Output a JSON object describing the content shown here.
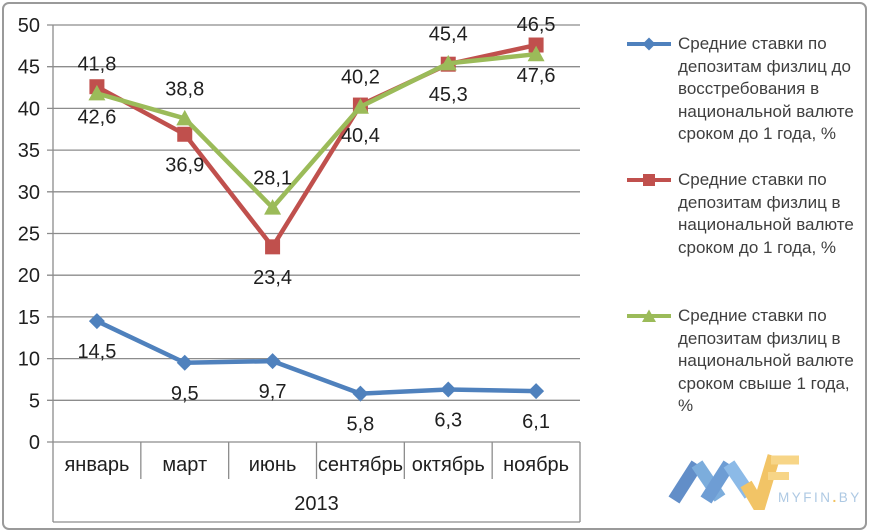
{
  "chart_data": {
    "type": "line",
    "title": "",
    "categories": [
      "январь",
      "март",
      "июнь",
      "сентябрь",
      "октябрь",
      "ноябрь"
    ],
    "x_group_label": "2013",
    "ylim": [
      0,
      50
    ],
    "ytick_step": 5,
    "grid": true,
    "legend_position": "right",
    "decimal_separator": ",",
    "series": [
      {
        "name": "Средние ставки по\nдепозитам физлиц до\nвосстребования в\nнациональной валюте\nсроком до 1 года, %",
        "color": "#4f81bd",
        "marker": "diamond",
        "label_position": "below",
        "values": [
          14.5,
          9.5,
          9.7,
          5.8,
          6.3,
          6.1
        ]
      },
      {
        "name": "Средние ставки по\nдепозитам физлиц в\nнациональной валюте\nсроком до 1 года, %",
        "color": "#c0504d",
        "marker": "square",
        "label_position": "below",
        "values": [
          42.6,
          36.9,
          23.4,
          40.4,
          45.3,
          47.6
        ]
      },
      {
        "name": "Средние ставки по\nдепозитам физлиц в\nнациональной валюте\nсроком свыше 1 года,\n%",
        "color": "#9bbb59",
        "marker": "triangle",
        "label_position": "above",
        "values": [
          41.8,
          38.8,
          28.1,
          40.2,
          45.4,
          46.5
        ]
      }
    ]
  },
  "watermark": {
    "brand": "MYFIN",
    "dot": ".",
    "tld": "BY"
  },
  "colors": {
    "grid": "#8c8c8c",
    "axis_text": "#1f1f1f",
    "legend_text": "#3f3f3f",
    "background": "#ffffff",
    "watermark_text_blue": "#a3c2e0",
    "watermark_yellow": "#f0ba4a"
  }
}
